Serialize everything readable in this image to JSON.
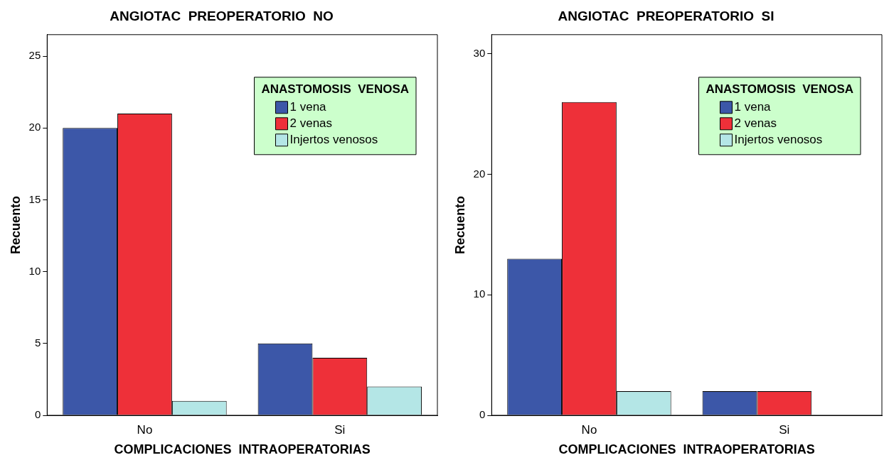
{
  "chart_data": [
    {
      "type": "bar",
      "title": "ANGIOTAC  PREOPERATORIO  NO",
      "xlabel": "COMPLICACIONES  INTRAOPERATORIAS",
      "ylabel": "Recuento",
      "legend_title": "ANASTOMOSIS  VENOSA",
      "legend": "top right",
      "grid": false,
      "categories": [
        "No",
        "Si"
      ],
      "series": [
        {
          "name": "1 vena",
          "color": "#3c57a8",
          "values": [
            20,
            5
          ]
        },
        {
          "name": "2 venas",
          "color": "#ee3039",
          "values": [
            21,
            4
          ]
        },
        {
          "name": "Injertos venosos",
          "color": "#b4e6e6",
          "values": [
            1,
            2
          ]
        }
      ],
      "ylim": [
        0,
        26.5
      ],
      "yticks": [
        0,
        5,
        10,
        15,
        20,
        25
      ]
    },
    {
      "type": "bar",
      "title": "ANGIOTAC  PREOPERATORIO  SI",
      "xlabel": "COMPLICACIONES  INTRAOPERATORIAS",
      "ylabel": "Recuento",
      "legend_title": "ANASTOMOSIS  VENOSA",
      "legend": "top right",
      "grid": false,
      "categories": [
        "No",
        "Si"
      ],
      "series": [
        {
          "name": "1 vena",
          "color": "#3c57a8",
          "values": [
            13,
            2
          ]
        },
        {
          "name": "2 venas",
          "color": "#ee3039",
          "values": [
            26,
            2
          ]
        },
        {
          "name": "Injertos venosos",
          "color": "#b4e6e6",
          "values": [
            2,
            0
          ]
        }
      ],
      "ylim": [
        0,
        31.6
      ],
      "yticks": [
        0,
        10,
        20,
        30
      ]
    }
  ]
}
